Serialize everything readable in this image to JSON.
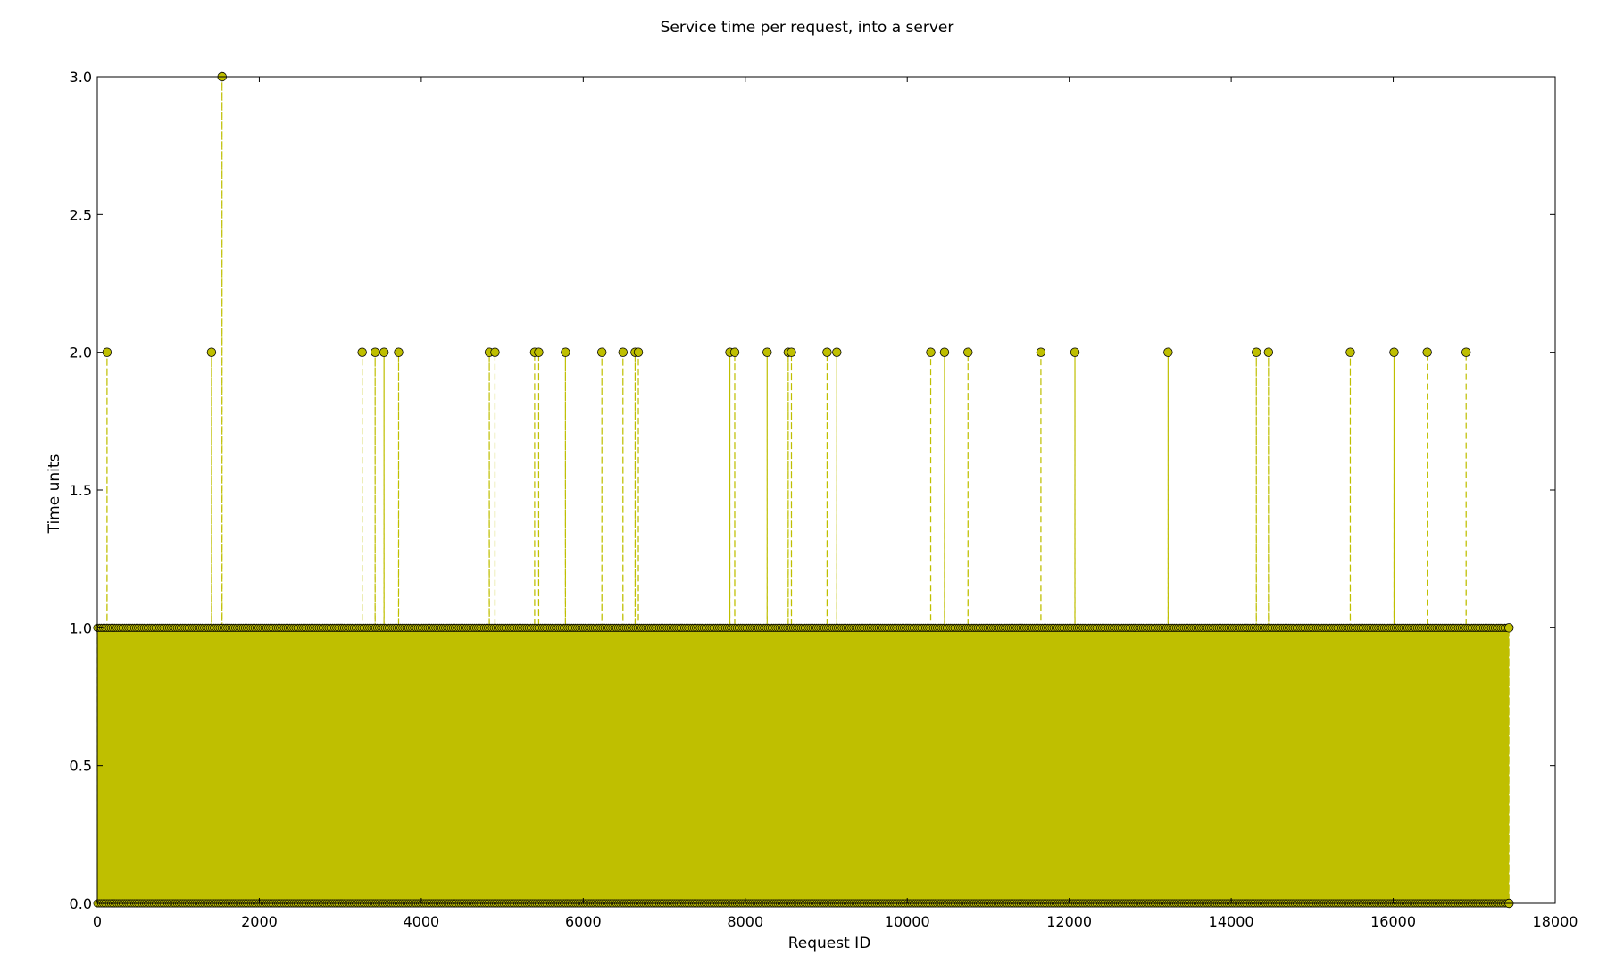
{
  "chart_data": {
    "type": "line",
    "title": "Service time per request, into a server",
    "xlabel": "Request ID",
    "ylabel": "Time units",
    "xlim": [
      0,
      18000
    ],
    "ylim": [
      0.0,
      3.0
    ],
    "xticks": [
      0,
      2000,
      4000,
      6000,
      8000,
      10000,
      12000,
      14000,
      16000,
      18000
    ],
    "xtick_labels": [
      "0",
      "2000",
      "4000",
      "6000",
      "8000",
      "10000",
      "12000",
      "14000",
      "16000",
      "18000"
    ],
    "yticks": [
      0.0,
      0.5,
      1.0,
      1.5,
      2.0,
      2.5,
      3.0
    ],
    "ytick_labels": [
      "0.0",
      "0.5",
      "1.0",
      "1.5",
      "2.0",
      "2.5",
      "3.0"
    ],
    "grid": false,
    "series": [
      {
        "color": "#bfbf00",
        "line_style": "dashed",
        "marker": "circle",
        "last_request_id": 17430,
        "baseline_value": 1.0,
        "baseline_pattern": "nearly all requests alternate between 1.0 and 0.0 time units",
        "points_at_2": [
          120,
          1410,
          3270,
          3430,
          3540,
          3720,
          4840,
          4910,
          5400,
          5450,
          5780,
          6230,
          6490,
          6640,
          6680,
          7810,
          7870,
          8270,
          8530,
          8570,
          9010,
          9130,
          10290,
          10460,
          10750,
          11650,
          12070,
          13220,
          14310,
          14460,
          15470,
          16010,
          16420,
          16900
        ],
        "points_at_3": [
          1540
        ],
        "final_point": [
          17430,
          0.0
        ]
      }
    ]
  }
}
